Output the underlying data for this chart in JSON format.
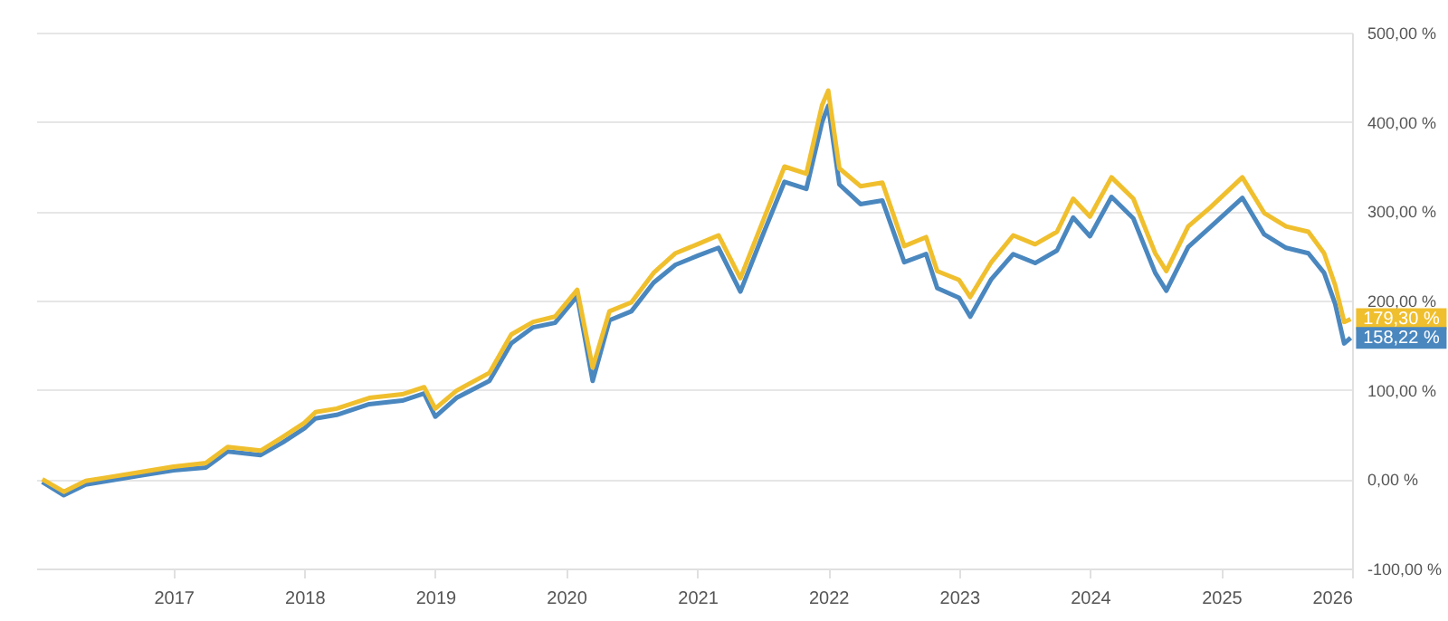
{
  "chart_data": {
    "type": "line",
    "x": [
      "2016-01-01",
      "2016-03-01",
      "2016-05-01",
      "2016-07-01",
      "2016-10-01",
      "2017-01-01",
      "2017-04-01",
      "2017-06-01",
      "2017-09-01",
      "2017-11-01",
      "2018-01-01",
      "2018-02-01",
      "2018-04-01",
      "2018-07-01",
      "2018-10-01",
      "2018-12-01",
      "2019-01-01",
      "2019-03-01",
      "2019-06-01",
      "2019-08-01",
      "2019-10-01",
      "2019-12-01",
      "2020-02-01",
      "2020-03-15",
      "2020-05-01",
      "2020-07-01",
      "2020-09-01",
      "2020-11-01",
      "2021-01-01",
      "2021-03-01",
      "2021-05-01",
      "2021-07-01",
      "2021-09-01",
      "2021-11-01",
      "2021-12-15",
      "2022-01-01",
      "2022-02-01",
      "2022-04-01",
      "2022-06-01",
      "2022-08-01",
      "2022-10-01",
      "2022-11-01",
      "2023-01-01",
      "2023-02-01",
      "2023-04-01",
      "2023-06-01",
      "2023-08-01",
      "2023-10-01",
      "2023-11-15",
      "2024-01-01",
      "2024-03-01",
      "2024-05-01",
      "2024-07-01",
      "2024-08-01",
      "2024-10-01",
      "2024-12-01",
      "2025-03-01",
      "2025-05-01",
      "2025-07-01",
      "2025-09-01",
      "2025-10-15",
      "2025-11-15",
      "2025-12-10",
      "2025-12-28"
    ],
    "series": [
      {
        "color": "#f0bf2e",
        "values": [
          0,
          -14,
          -2,
          2,
          8,
          14,
          18,
          36,
          32,
          47,
          63,
          75,
          79,
          91,
          95,
          103,
          79,
          99,
          119,
          162,
          176,
          182,
          212,
          125,
          188,
          198,
          231,
          253,
          263,
          273,
          225,
          287,
          350,
          342,
          419,
          435,
          348,
          328,
          332,
          261,
          271,
          233,
          223,
          204,
          243,
          273,
          263,
          277,
          314,
          294,
          338,
          314,
          253,
          233,
          283,
          304,
          338,
          298,
          283,
          277,
          253,
          217,
          176,
          179.3
        ],
        "value_labels": [
          null,
          null,
          null,
          null,
          null,
          null,
          null,
          null,
          null,
          null,
          null,
          null,
          null,
          null,
          null,
          null,
          null,
          null,
          null,
          null,
          null,
          null,
          null,
          null,
          null,
          null,
          null,
          null,
          null,
          null,
          null,
          null,
          null,
          null,
          null,
          null,
          null,
          null,
          null,
          null,
          null,
          null,
          null,
          null,
          null,
          null,
          null,
          null,
          null,
          null,
          null,
          null,
          null,
          null,
          null,
          null,
          null,
          null,
          null,
          null,
          null,
          null,
          null,
          "179,30 %"
        ]
      },
      {
        "color": "#4a87bf",
        "values": [
          -3,
          -18,
          -6,
          -2,
          4,
          10,
          13,
          31,
          27,
          41,
          57,
          68,
          72,
          84,
          88,
          96,
          70,
          91,
          110,
          152,
          170,
          175,
          205,
          110,
          178,
          188,
          220,
          240,
          250,
          259,
          210,
          272,
          333,
          325,
          400,
          418,
          330,
          308,
          312,
          243,
          252,
          214,
          203,
          182,
          224,
          252,
          242,
          256,
          293,
          272,
          316,
          292,
          231,
          211,
          260,
          282,
          315,
          274,
          259,
          253,
          231,
          196,
          152,
          158.22
        ],
        "value_labels": [
          null,
          null,
          null,
          null,
          null,
          null,
          null,
          null,
          null,
          null,
          null,
          null,
          null,
          null,
          null,
          null,
          null,
          null,
          null,
          null,
          null,
          null,
          null,
          null,
          null,
          null,
          null,
          null,
          null,
          null,
          null,
          null,
          null,
          null,
          null,
          null,
          null,
          null,
          null,
          null,
          null,
          null,
          null,
          null,
          null,
          null,
          null,
          null,
          null,
          null,
          null,
          null,
          null,
          null,
          null,
          null,
          null,
          null,
          null,
          null,
          null,
          null,
          null,
          "158,22 %"
        ]
      }
    ],
    "xlim": [
      "2015-12-15",
      "2026-01-01"
    ],
    "xticks": [
      "2017",
      "2018",
      "2019",
      "2020",
      "2021",
      "2022",
      "2023",
      "2024",
      "2025",
      "2026"
    ],
    "ylim": [
      -100,
      500
    ],
    "yticks": [
      {
        "value": -100,
        "label": "-100,00 %"
      },
      {
        "value": 0,
        "label": "0,00 %"
      },
      {
        "value": 100,
        "label": "100,00 %"
      },
      {
        "value": 200,
        "label": "200,00 %"
      },
      {
        "value": 300,
        "label": "300,00 %"
      },
      {
        "value": 400,
        "label": "400,00 %"
      },
      {
        "value": 500,
        "label": "500,00 %"
      }
    ],
    "grid": "y",
    "marker": "none",
    "line_style": "solid"
  }
}
